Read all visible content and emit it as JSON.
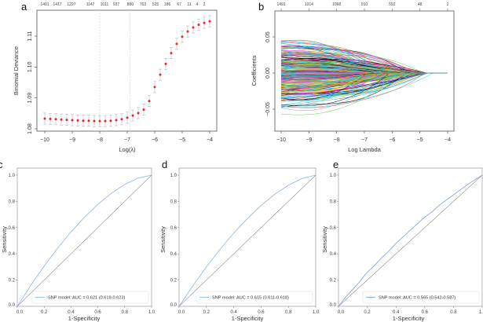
{
  "panels": {
    "a": "a",
    "b": "b",
    "c": "c",
    "d": "d",
    "e": "e"
  },
  "chart_data": [
    {
      "id": "a",
      "type": "scatter",
      "xlabel": "Log(λ)",
      "ylabel": "Binomial Deviance",
      "xlim": [
        -10,
        -4
      ],
      "ylim": [
        1.08,
        1.115
      ],
      "xticks": [
        -10,
        -9,
        -8,
        -7,
        -6,
        -5,
        -4
      ],
      "yticks": [
        1.08,
        1.09,
        1.1,
        1.11
      ],
      "ytick_labels": [
        "1.08",
        "1.09",
        "1.10",
        "1.11"
      ],
      "reference_lines": [
        -8.0,
        -6.9
      ],
      "top_axis": [
        {
          "x": -10,
          "label": "1491"
        },
        {
          "x": -9.54,
          "label": "1417"
        },
        {
          "x": -9.03,
          "label": "1297"
        },
        {
          "x": -8.34,
          "label": "1147"
        },
        {
          "x": -7.83,
          "label": "1011"
        },
        {
          "x": -7.4,
          "label": "937"
        },
        {
          "x": -6.89,
          "label": "880"
        },
        {
          "x": -6.43,
          "label": "763"
        },
        {
          "x": -5.97,
          "label": "525"
        },
        {
          "x": -5.54,
          "label": "186"
        },
        {
          "x": -5.11,
          "label": "67"
        },
        {
          "x": -4.74,
          "label": "11"
        },
        {
          "x": -4.46,
          "label": "4"
        },
        {
          "x": -4.2,
          "label": "2"
        }
      ],
      "x": [
        -10,
        -9.8,
        -9.6,
        -9.4,
        -9.2,
        -9.0,
        -8.8,
        -8.6,
        -8.4,
        -8.2,
        -8.0,
        -7.8,
        -7.6,
        -7.4,
        -7.2,
        -7.0,
        -6.8,
        -6.6,
        -6.4,
        -6.2,
        -6.0,
        -5.8,
        -5.6,
        -5.4,
        -5.2,
        -5.0,
        -4.8,
        -4.6,
        -4.4,
        -4.2,
        -4.0
      ],
      "y": [
        1.0833,
        1.0832,
        1.0831,
        1.083,
        1.0829,
        1.0828,
        1.0827,
        1.0826,
        1.0826,
        1.0825,
        1.0825,
        1.0825,
        1.0826,
        1.0828,
        1.0831,
        1.0836,
        1.0843,
        1.0851,
        1.0862,
        1.089,
        1.0935,
        1.0975,
        1.101,
        1.1045,
        1.1075,
        1.1098,
        1.1115,
        1.1128,
        1.1137,
        1.1143,
        1.1148
      ],
      "error": 0.0018,
      "point_color": "#e8262b",
      "errorbar_color": "#b8b8b8"
    },
    {
      "id": "b",
      "type": "line",
      "xlabel": "Log Lambda",
      "ylabel": "Coefficients",
      "xlim": [
        -10,
        -4
      ],
      "ylim": [
        -0.08,
        0.08
      ],
      "xticks": [
        -10,
        -9,
        -8,
        -7,
        -6,
        -5,
        -4
      ],
      "yticks": [
        -0.05,
        0.0,
        0.05
      ],
      "ytick_labels": [
        "-0.05",
        "0.00",
        "0.05"
      ],
      "top_axis": [
        {
          "x": -10,
          "label": "1491"
        },
        {
          "x": -9,
          "label": "1314"
        },
        {
          "x": -8,
          "label": "1068"
        },
        {
          "x": -7,
          "label": "910"
        },
        {
          "x": -6,
          "label": "592"
        },
        {
          "x": -5,
          "label": "48"
        },
        {
          "x": -4,
          "label": "2"
        }
      ],
      "colors": [
        "#000000",
        "#DF536B",
        "#61D04F",
        "#2297E6",
        "#28E2E5",
        "#CD0BBC",
        "#F5C710",
        "#9E9E9E"
      ]
    },
    {
      "id": "c",
      "type": "line",
      "xlabel": "1-Specificity",
      "ylabel": "Sensitivity",
      "xlim": [
        0,
        1
      ],
      "ylim": [
        0,
        1
      ],
      "ticks": [
        "0.0",
        "0.2",
        "0.4",
        "0.6",
        "0.8",
        "1.0"
      ],
      "series": [
        {
          "name": "SNP model: AUC = 0.621 (0.619-0.623)",
          "x": [
            0,
            0.1,
            0.2,
            0.3,
            0.4,
            0.5,
            0.6,
            0.7,
            0.8,
            0.9,
            1.0
          ],
          "y": [
            0,
            0.159,
            0.306,
            0.443,
            0.567,
            0.679,
            0.777,
            0.861,
            0.929,
            0.977,
            1.0
          ]
        }
      ],
      "color": "#8fb3e8"
    },
    {
      "id": "d",
      "type": "line",
      "xlabel": "1-Specificity",
      "ylabel": "Sensitivity",
      "xlim": [
        0,
        1
      ],
      "ylim": [
        0,
        1
      ],
      "ticks": [
        "0.0",
        "0.2",
        "0.4",
        "0.6",
        "0.8",
        "1.0"
      ],
      "series": [
        {
          "name": "SNP model: AUC = 0.615 (0.611-0.618)",
          "x": [
            0,
            0.1,
            0.2,
            0.3,
            0.4,
            0.5,
            0.6,
            0.7,
            0.8,
            0.9,
            1.0
          ],
          "y": [
            0,
            0.155,
            0.3,
            0.434,
            0.558,
            0.669,
            0.768,
            0.854,
            0.923,
            0.975,
            1.0
          ]
        }
      ],
      "color": "#8fb3e8"
    },
    {
      "id": "e",
      "type": "line",
      "xlabel": "1-Specificity",
      "ylabel": "Sensitivity",
      "xlim": [
        0,
        1
      ],
      "ylim": [
        0,
        1
      ],
      "ticks": [
        "0.0",
        "0.2",
        "0.4",
        "0.6",
        "0.8",
        "1.0"
      ],
      "series": [
        {
          "name": "SNP model: AUC = 0.565 (0.542-0.587)",
          "x": [
            0,
            0.05,
            0.1,
            0.15,
            0.2,
            0.25,
            0.3,
            0.35,
            0.4,
            0.45,
            0.5,
            0.55,
            0.6,
            0.65,
            0.7,
            0.75,
            0.8,
            0.85,
            0.9,
            0.95,
            1.0
          ],
          "y": [
            0,
            0.07,
            0.13,
            0.19,
            0.26,
            0.31,
            0.37,
            0.42,
            0.48,
            0.53,
            0.58,
            0.63,
            0.68,
            0.72,
            0.77,
            0.81,
            0.85,
            0.89,
            0.93,
            0.965,
            1.0
          ]
        }
      ],
      "color": "#7c9ee0"
    }
  ]
}
